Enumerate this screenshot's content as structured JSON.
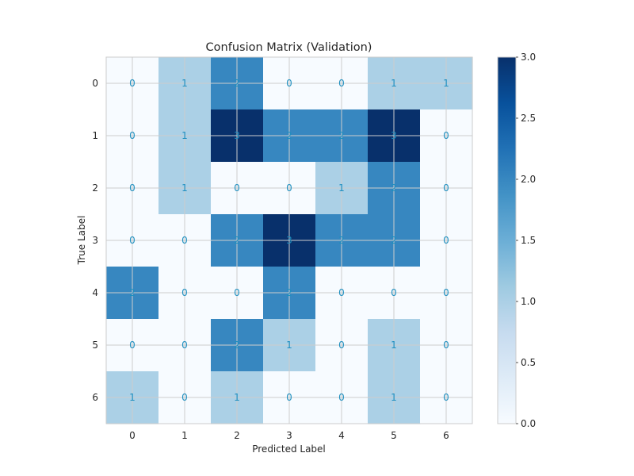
{
  "chart_data": {
    "type": "heatmap",
    "title": "Confusion Matrix (Validation)",
    "xlabel": "Predicted Label",
    "ylabel": "True Label",
    "x_tick_labels": [
      "0",
      "1",
      "2",
      "3",
      "4",
      "5",
      "6"
    ],
    "y_tick_labels": [
      "0",
      "1",
      "2",
      "3",
      "4",
      "5",
      "6"
    ],
    "matrix": [
      [
        0,
        1,
        2,
        0,
        0,
        1,
        1
      ],
      [
        0,
        1,
        3,
        2,
        2,
        3,
        0
      ],
      [
        0,
        1,
        0,
        0,
        1,
        2,
        0
      ],
      [
        0,
        0,
        2,
        3,
        2,
        2,
        0
      ],
      [
        2,
        0,
        0,
        2,
        0,
        0,
        0
      ],
      [
        0,
        0,
        2,
        1,
        0,
        1,
        0
      ],
      [
        1,
        0,
        1,
        0,
        0,
        1,
        0
      ]
    ],
    "color_range": [
      0,
      3
    ],
    "colormap": "Blues",
    "colormap_stops": [
      "#f7fbff",
      "#deebf7",
      "#c6dbef",
      "#9ecae1",
      "#6baed6",
      "#4292c6",
      "#2171b5",
      "#08519c",
      "#08306b"
    ],
    "cell_text_color": "#1f8fbf",
    "colorbar_ticks": [
      "0.0",
      "0.5",
      "1.0",
      "1.5",
      "2.0",
      "2.5",
      "3.0"
    ],
    "grid": true
  }
}
